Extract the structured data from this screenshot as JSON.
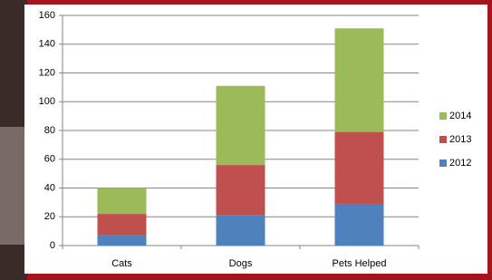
{
  "chart_data": {
    "type": "stacked_bar",
    "categories": [
      "Cats",
      "Dogs",
      "Pets Helped"
    ],
    "series": [
      {
        "name": "2012",
        "color": "#4f81bd",
        "values": [
          7,
          21,
          29
        ]
      },
      {
        "name": "2013",
        "color": "#c0504d",
        "values": [
          15,
          35,
          50
        ]
      },
      {
        "name": "2014",
        "color": "#9bbb59",
        "values": [
          18,
          55,
          72
        ]
      }
    ],
    "ylim": [
      0,
      160
    ],
    "yticks": [
      0,
      20,
      40,
      60,
      80,
      100,
      120,
      140,
      160
    ],
    "grid": true,
    "legend": "right"
  }
}
